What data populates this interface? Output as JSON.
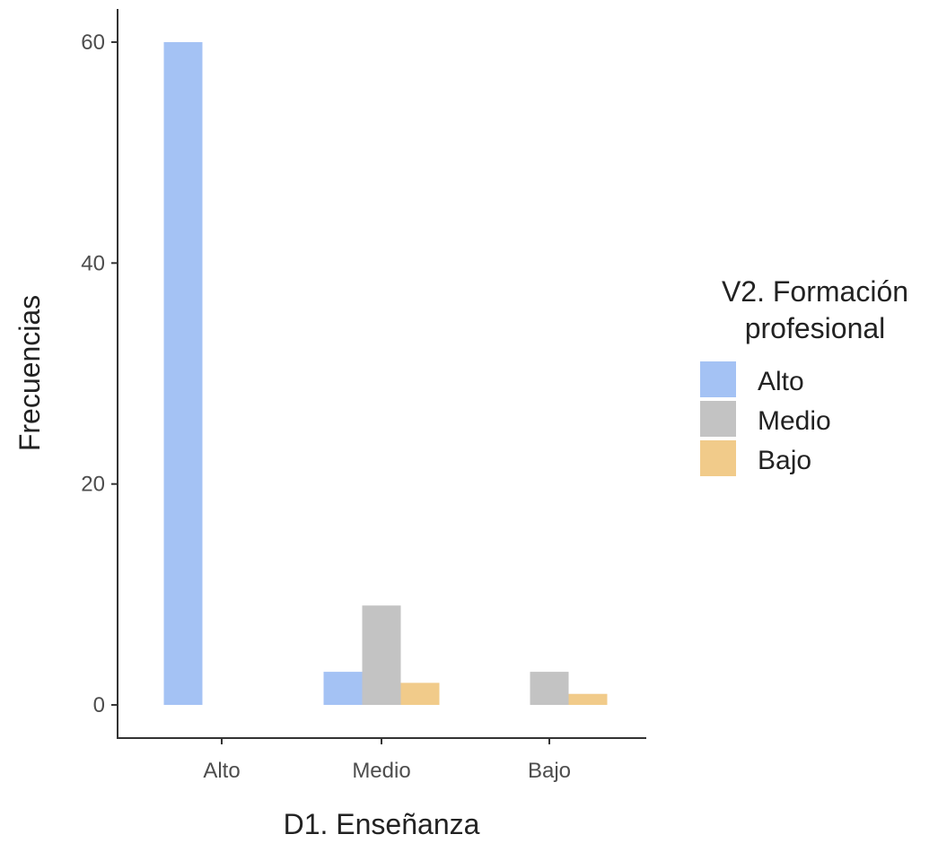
{
  "chart_data": {
    "type": "bar",
    "xlabel": "D1. Enseñanza",
    "ylabel": "Frecuencias",
    "categories": [
      "Alto",
      "Medio",
      "Bajo"
    ],
    "series": [
      {
        "name": "Alto",
        "color": "#a4c2f4",
        "values": [
          60,
          3,
          0
        ]
      },
      {
        "name": "Medio",
        "color": "#c3c3c3",
        "values": [
          0,
          9,
          3
        ]
      },
      {
        "name": "Bajo",
        "color": "#f1cb8a",
        "values": [
          0,
          2,
          1
        ]
      }
    ],
    "ylim": [
      -3,
      63
    ],
    "yticks": [
      0,
      20,
      40,
      60
    ],
    "legend": {
      "title_lines": [
        "V2. Formación",
        "profesional"
      ],
      "position": "right"
    },
    "grid": false
  }
}
